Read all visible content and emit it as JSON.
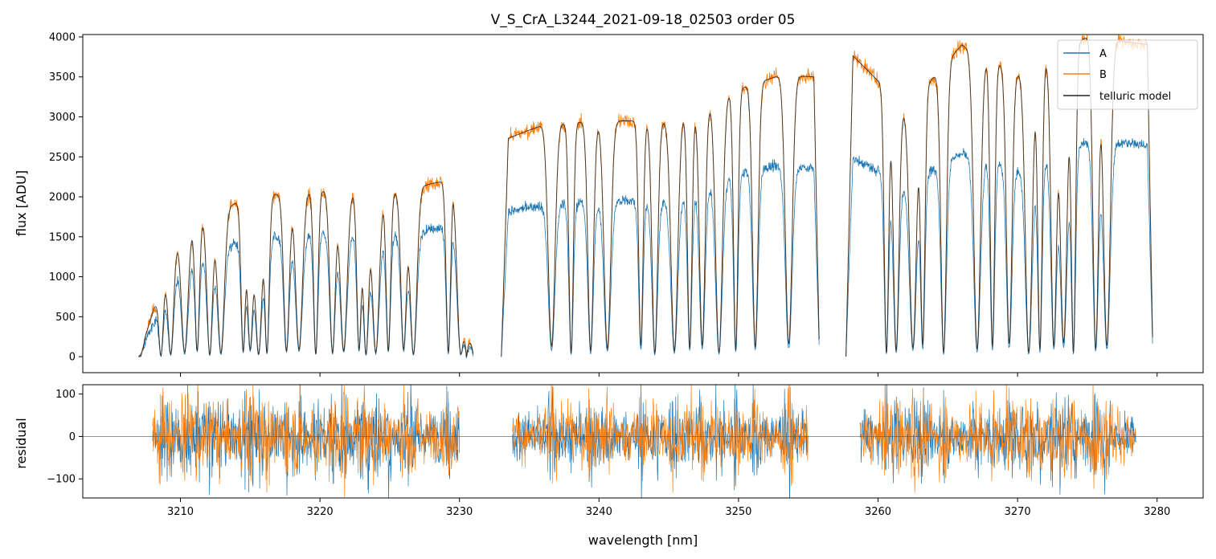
{
  "chart_data": {
    "type": "line",
    "title": "V_S_CrA_L3244_2021-09-18_02503  order 05",
    "colors": {
      "A": "#1f77b4",
      "B": "#ff7f0e",
      "model": "#222222",
      "zero": "#555555"
    },
    "legend": {
      "placement": "top-right",
      "entries": [
        "A",
        "B",
        "telluric model"
      ]
    },
    "top_panel": {
      "ylabel": "flux [ADU]",
      "ylim": [
        -200,
        4030
      ],
      "yticks": [
        "0",
        "500",
        "1000",
        "1500",
        "2000",
        "2500",
        "3000",
        "3500",
        "4000"
      ],
      "segments": [
        [
          3207.0,
          3231.0
        ],
        [
          3233.0,
          3255.8
        ],
        [
          3257.7,
          3279.7
        ]
      ],
      "continuum_points_x": [
        3207,
        3210,
        3215,
        3220,
        3225,
        3229.5,
        3230.5,
        3233,
        3236,
        3240,
        3245,
        3250,
        3253,
        3255.5,
        3258,
        3262,
        3266,
        3270,
        3275,
        3279.5
      ],
      "continuum_B_y": [
        0,
        1620,
        2000,
        2080,
        2050,
        2220,
        0,
        2700,
        2900,
        2950,
        2950,
        3350,
        3520,
        3500,
        3800,
        3100,
        3900,
        3550,
        4000,
        3900
      ],
      "continuum_A_y": [
        0,
        1180,
        1480,
        1550,
        1520,
        1640,
        0,
        1800,
        1900,
        1950,
        1950,
        2300,
        2400,
        2350,
        2500,
        2150,
        2550,
        2350,
        2700,
        2650
      ],
      "absorption_line_centers": [
        3208.6,
        3209.3,
        3210.3,
        3211.2,
        3212.1,
        3212.9,
        3214.5,
        3215.0,
        3215.6,
        3216.2,
        3217.6,
        3218.5,
        3219.7,
        3220.9,
        3221.7,
        3222.8,
        3223.3,
        3224.0,
        3224.9,
        3226.0,
        3226.7,
        3229.2,
        3230.1,
        3236.6,
        3238.0,
        3239.4,
        3240.6,
        3243.0,
        3244.0,
        3245.4,
        3246.5,
        3247.4,
        3248.6,
        3249.8,
        3251.2,
        3253.6,
        3260.6,
        3261.3,
        3262.5,
        3263.2,
        3264.7,
        3267.1,
        3268.2,
        3269.4,
        3270.8,
        3271.6,
        3272.6,
        3273.3,
        3274.0,
        3275.6,
        3276.4
      ]
    },
    "bottom_panel": {
      "ylabel": "residual",
      "ylim": [
        -145,
        122
      ],
      "yticks": [
        "−100",
        "0",
        "100"
      ],
      "segments": [
        [
          3208.0,
          3230.0
        ],
        [
          3233.8,
          3255.0
        ],
        [
          3258.7,
          3278.5
        ]
      ],
      "noise_amplitude": 30
    },
    "xlabel": "wavelength [nm]",
    "xlim": [
      3203.0,
      3283.3
    ],
    "xticks": [
      "3210",
      "3220",
      "3230",
      "3240",
      "3250",
      "3260",
      "3270",
      "3280"
    ]
  }
}
